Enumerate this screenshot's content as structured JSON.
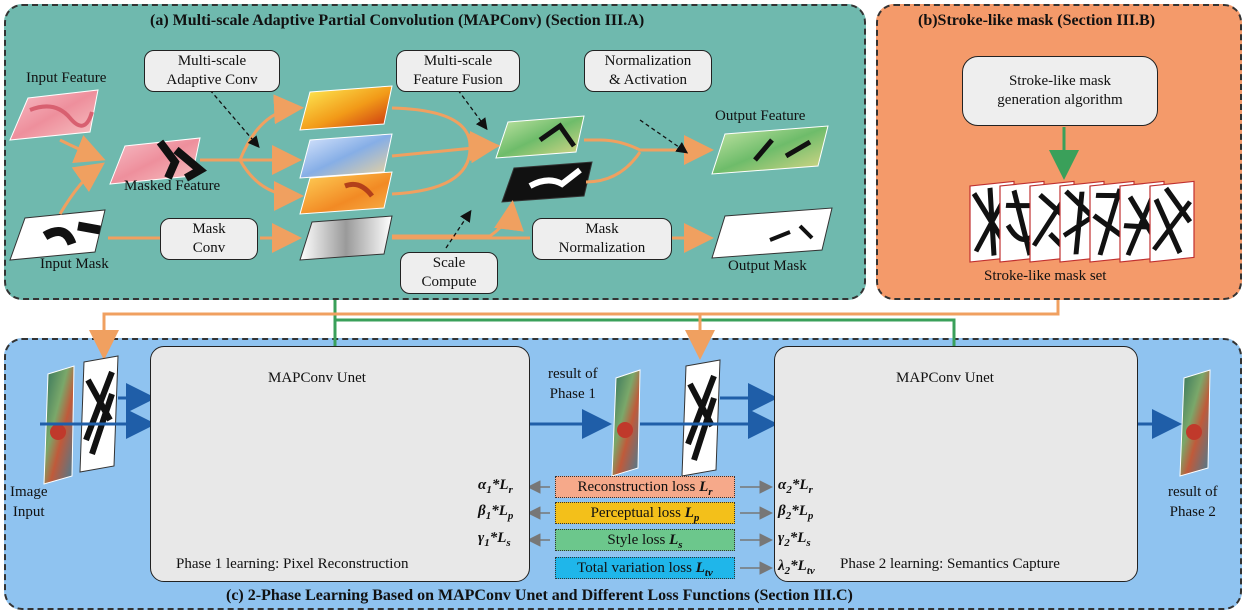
{
  "panel_a": {
    "title": "(a)  Multi-scale Adaptive Partial Convolution (MAPConv) (Section III.A)",
    "input_feature": "Input Feature",
    "masked_feature": "Masked Feature",
    "input_mask": "Input Mask",
    "output_feature": "Output Feature",
    "output_mask": "Output Mask",
    "box_adaptive_conv": [
      "Multi-scale",
      "Adaptive Conv"
    ],
    "box_feature_fusion": [
      "Multi-scale",
      "Feature Fusion"
    ],
    "box_norm_act": [
      "Normalization",
      "& Activation"
    ],
    "box_mask_conv": [
      "Mask",
      "Conv"
    ],
    "box_mask_norm": [
      "Mask",
      "Normalization"
    ],
    "box_scale_compute": [
      "Scale",
      "Compute"
    ]
  },
  "panel_b": {
    "title": "(b)Stroke-like mask  (Section III.B)",
    "box_generation": [
      "Stroke-like mask",
      "generation algorithm"
    ],
    "mask_set_label": "Stroke-like mask set"
  },
  "panel_c": {
    "title": "(c) 2-Phase Learning Based on MAPConv Unet and Different Loss Functions (Section III.C)",
    "image_input": [
      "Image",
      "Input"
    ],
    "result_phase1": [
      "result of",
      "Phase 1"
    ],
    "result_phase2": [
      "result of",
      "Phase 2"
    ],
    "unet1_label": "MAPConv Unet",
    "unet2_label": "MAPConv Unet",
    "phase1_caption": "Phase 1 learning: Pixel Reconstruction",
    "phase2_caption": "Phase 2 learning: Semantics Capture",
    "losses": [
      {
        "text": "Reconstruction loss ",
        "sym": "L",
        "sub": "r",
        "color": "#f6a98a"
      },
      {
        "text": "Perceptual loss ",
        "sym": "L",
        "sub": "p",
        "color": "#f3c01a"
      },
      {
        "text": "Style loss ",
        "sym": "L",
        "sub": "s",
        "color": "#6cc78c"
      },
      {
        "text": "Total variation loss ",
        "sym": "L",
        "sub": "tv",
        "color": "#1fb6ea"
      }
    ],
    "coefs_left": [
      {
        "g": "α",
        "n": "1",
        "L": "L",
        "s": "r"
      },
      {
        "g": "β",
        "n": "1",
        "L": "L",
        "s": "p"
      },
      {
        "g": "γ",
        "n": "1",
        "L": "L",
        "s": "s"
      }
    ],
    "coefs_right": [
      {
        "g": "α",
        "n": "2",
        "L": "L",
        "s": "r"
      },
      {
        "g": "β",
        "n": "2",
        "L": "L",
        "s": "p"
      },
      {
        "g": "γ",
        "n": "2",
        "L": "L",
        "s": "s"
      },
      {
        "g": "λ",
        "n": "2",
        "L": "L",
        "s": "tv"
      }
    ]
  },
  "colors": {
    "arrow_orange": "#f0a060",
    "arrow_green": "#3aa05a",
    "arrow_blue": "#1f5ea8",
    "unet_yellow": "#f3c01a",
    "unet_blue": "#9dc8f0"
  }
}
